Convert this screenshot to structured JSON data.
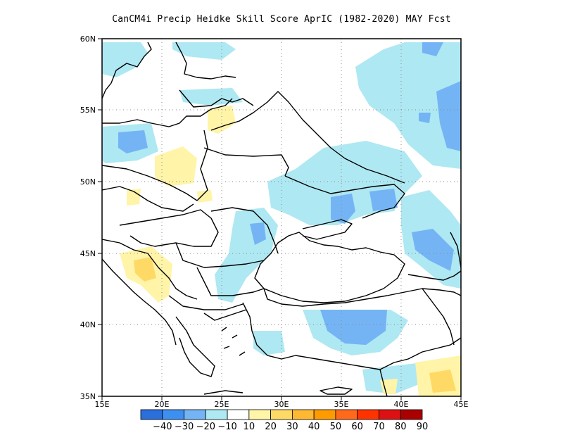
{
  "title": "CanCM4i Precip Heidke Skill Score AprIC (1982-2020) MAY Fcst",
  "map": {
    "lon_range": [
      15,
      45
    ],
    "lat_range": [
      35,
      60
    ],
    "x_ticks": [
      "15E",
      "20E",
      "25E",
      "30E",
      "35E",
      "40E",
      "45E"
    ],
    "y_ticks": [
      "35N",
      "40N",
      "45N",
      "50N",
      "55N",
      "60N"
    ],
    "gridlines": "dotted",
    "region": "Eastern Europe / Black Sea"
  },
  "colorbar": {
    "labels": [
      "-40",
      "-30",
      "-20",
      "-10",
      "10",
      "20",
      "30",
      "40",
      "50",
      "60",
      "70",
      "80",
      "90"
    ],
    "colors": [
      "#2a6fdb",
      "#3d8ff0",
      "#74b4f5",
      "#aee8f2",
      "#ffffff",
      "#fff4a8",
      "#ffd966",
      "#ffb833",
      "#ff9a00",
      "#ff6a1a",
      "#ff3300",
      "#dd1111",
      "#aa0000"
    ]
  },
  "skill_regions": [
    {
      "name": "light-blue",
      "color": "#aee8f2"
    },
    {
      "name": "mid-blue",
      "color": "#74b4f5"
    },
    {
      "name": "light-yellow",
      "color": "#fff4a8"
    }
  ]
}
